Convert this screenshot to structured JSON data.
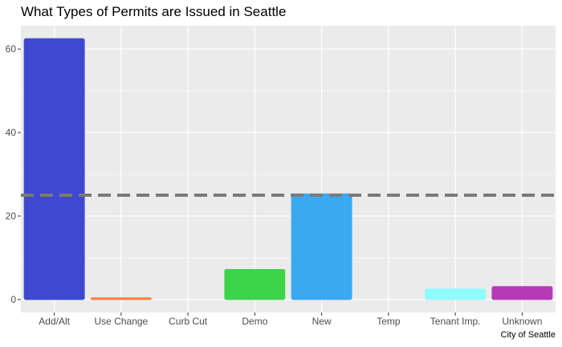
{
  "chart_data": {
    "type": "bar",
    "title": "What Types of Permits are Issued in Seattle",
    "caption": "City of Seattle",
    "xlabel": "",
    "ylabel": "",
    "categories": [
      "Add/Alt",
      "Use Change",
      "Curb Cut",
      "Demo",
      "New",
      "Temp",
      "Tenant Imp.",
      "Unknown"
    ],
    "values": [
      62.5,
      0.4,
      0,
      7.2,
      25.3,
      0,
      2.5,
      3.1
    ],
    "colors": [
      "#3f48d1",
      "#ff7f3f",
      "#7a7a7a",
      "#3dd44a",
      "#3ba9f2",
      "#7a7a7a",
      "#8ffcff",
      "#b63ab8"
    ],
    "ylim": [
      -3.1,
      65.6
    ],
    "yticks": [
      0,
      20,
      40,
      60
    ],
    "reference_line": {
      "value": 25,
      "style": "dashed",
      "color": "#7a7a7a"
    },
    "grid": true,
    "panel_background": "#ebebeb",
    "grid_color": "#ffffff",
    "legend": "none"
  }
}
